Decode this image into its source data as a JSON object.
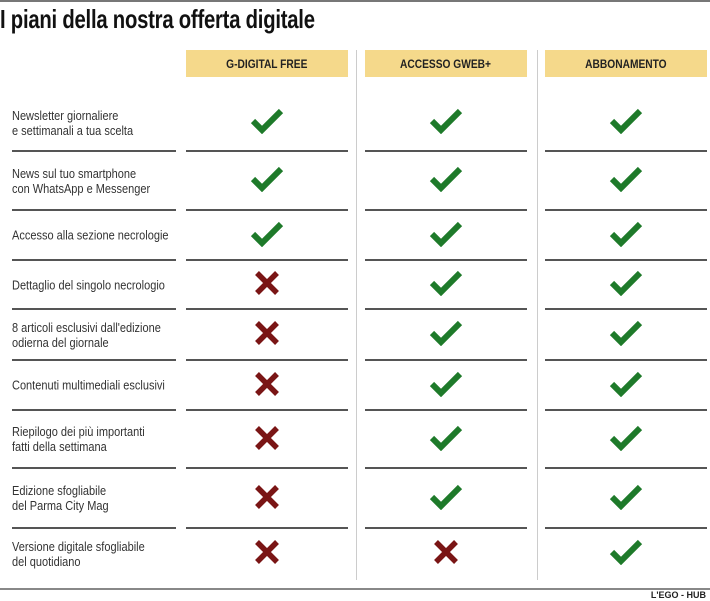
{
  "title": "I piani della nostra offerta digitale",
  "colors": {
    "header_bg": "#f5d98b",
    "check": "#1e7a2a",
    "cross": "#7a1515"
  },
  "columns": [
    "G-DIGITAL FREE",
    "ACCESSO GWEB+",
    "ABBONAMENTO"
  ],
  "rows": [
    {
      "label": [
        "Newsletter giornaliere",
        "e settimanali a tua scelta"
      ],
      "values": [
        "check-icon",
        "check-icon",
        "check-icon"
      ]
    },
    {
      "label": [
        "News sul tuo smartphone",
        "con WhatsApp e Messenger"
      ],
      "values": [
        "check-icon",
        "check-icon",
        "check-icon"
      ]
    },
    {
      "label": [
        "Accesso alla sezione necrologie"
      ],
      "values": [
        "check-icon",
        "check-icon",
        "check-icon"
      ]
    },
    {
      "label": [
        "Dettaglio del singolo necrologio"
      ],
      "values": [
        "cross-icon",
        "check-icon",
        "check-icon"
      ]
    },
    {
      "label": [
        "8 articoli esclusivi dall'edizione",
        "odierna del giornale"
      ],
      "values": [
        "cross-icon",
        "check-icon",
        "check-icon"
      ]
    },
    {
      "label": [
        "Contenuti multimediali esclusivi"
      ],
      "values": [
        "cross-icon",
        "check-icon",
        "check-icon"
      ]
    },
    {
      "label": [
        "Riepilogo dei più importanti",
        "fatti della settimana"
      ],
      "values": [
        "cross-icon",
        "check-icon",
        "check-icon"
      ]
    },
    {
      "label": [
        "Edizione sfogliabile",
        "del Parma City Mag"
      ],
      "values": [
        "cross-icon",
        "check-icon",
        "check-icon"
      ]
    },
    {
      "label": [
        "Versione digitale sfogliabile",
        "del quotidiano"
      ],
      "values": [
        "cross-icon",
        "cross-icon",
        "check-icon"
      ]
    }
  ],
  "footer": "L'EGO - HUB"
}
